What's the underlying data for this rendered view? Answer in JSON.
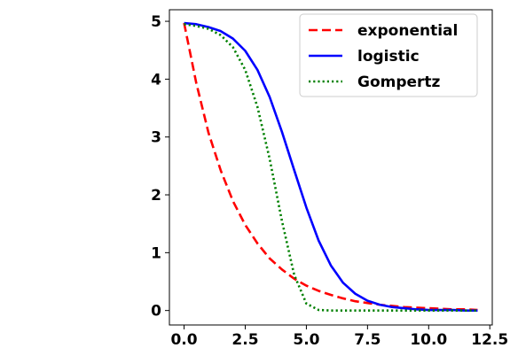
{
  "chart_data": {
    "type": "line",
    "title": "",
    "xlabel": "",
    "ylabel": "",
    "xlim": [
      -0.6,
      12.6
    ],
    "ylim": [
      -0.25,
      5.2
    ],
    "xticks": [
      0.0,
      2.5,
      5.0,
      7.5,
      10.0,
      12.5
    ],
    "xtick_labels": [
      "0.0",
      "2.5",
      "5.0",
      "7.5",
      "10.0",
      "12.5"
    ],
    "yticks": [
      0,
      1,
      2,
      3,
      4,
      5
    ],
    "ytick_labels": [
      "0",
      "1",
      "2",
      "3",
      "4",
      "5"
    ],
    "grid": false,
    "legend_position": "upper-right",
    "x": [
      0,
      0.5,
      1,
      1.5,
      2,
      2.5,
      3,
      3.5,
      4,
      4.5,
      5,
      5.5,
      6,
      6.5,
      7,
      7.5,
      8,
      8.5,
      9,
      9.5,
      10,
      10.5,
      11,
      11.5,
      12
    ],
    "series": [
      {
        "name": "exponential",
        "color": "#ff0000",
        "style": "dashed",
        "values": [
          4.97,
          3.93,
          3.07,
          2.42,
          1.89,
          1.48,
          1.16,
          0.9,
          0.71,
          0.55,
          0.43,
          0.34,
          0.27,
          0.21,
          0.16,
          0.13,
          0.1,
          0.08,
          0.06,
          0.05,
          0.04,
          0.03,
          0.02,
          0.02,
          0.01
        ]
      },
      {
        "name": "logistic",
        "color": "#0000ff",
        "style": "solid",
        "values": [
          4.97,
          4.95,
          4.9,
          4.83,
          4.7,
          4.49,
          4.16,
          3.69,
          3.09,
          2.43,
          1.78,
          1.21,
          0.78,
          0.48,
          0.29,
          0.17,
          0.1,
          0.06,
          0.04,
          0.02,
          0.01,
          0.01,
          0.01,
          0.0,
          0.0
        ]
      },
      {
        "name": "Gompertz",
        "color": "#008000",
        "style": "dotted",
        "values": [
          4.95,
          4.92,
          4.87,
          4.76,
          4.55,
          4.16,
          3.52,
          2.62,
          1.55,
          0.62,
          0.12,
          0.01,
          0.0,
          0.0,
          0.0,
          0.0,
          0.0,
          0.0,
          0.0,
          0.0,
          0.0,
          0.0,
          0.0,
          0.0,
          0.0
        ]
      }
    ]
  }
}
